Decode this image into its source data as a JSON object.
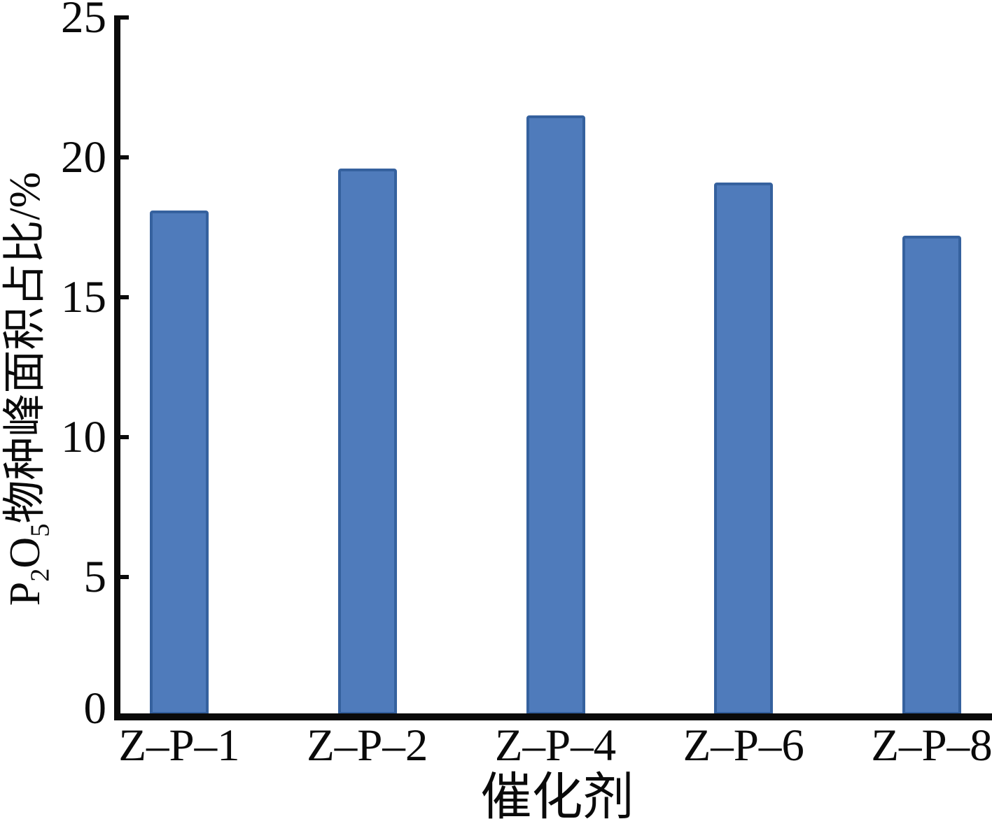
{
  "chart_data": {
    "type": "bar",
    "title": "",
    "categories": [
      "Z–P–1",
      "Z–P–2",
      "Z–P–4",
      "Z–P–6",
      "Z–P–8"
    ],
    "values": [
      18.1,
      19.6,
      21.5,
      19.1,
      17.2
    ],
    "xlabel": "催化剂",
    "ylabel": "P2O5物种峰面积占比/%",
    "ylabel_parts": {
      "el1": "P",
      "sub1": "2",
      "el2": "O",
      "sub2": "5",
      "rest": "物种峰面积占比/%"
    },
    "ylim": [
      0,
      25
    ],
    "yticks": [
      0,
      5,
      10,
      15,
      20,
      25
    ],
    "grid": false,
    "legend": "none",
    "bar_color": "#4f7bbb",
    "bar_border_color": "#35619e",
    "axis_color": "#0a0a0a",
    "text_color": "#0a0a0a",
    "background": "#ffffff"
  }
}
